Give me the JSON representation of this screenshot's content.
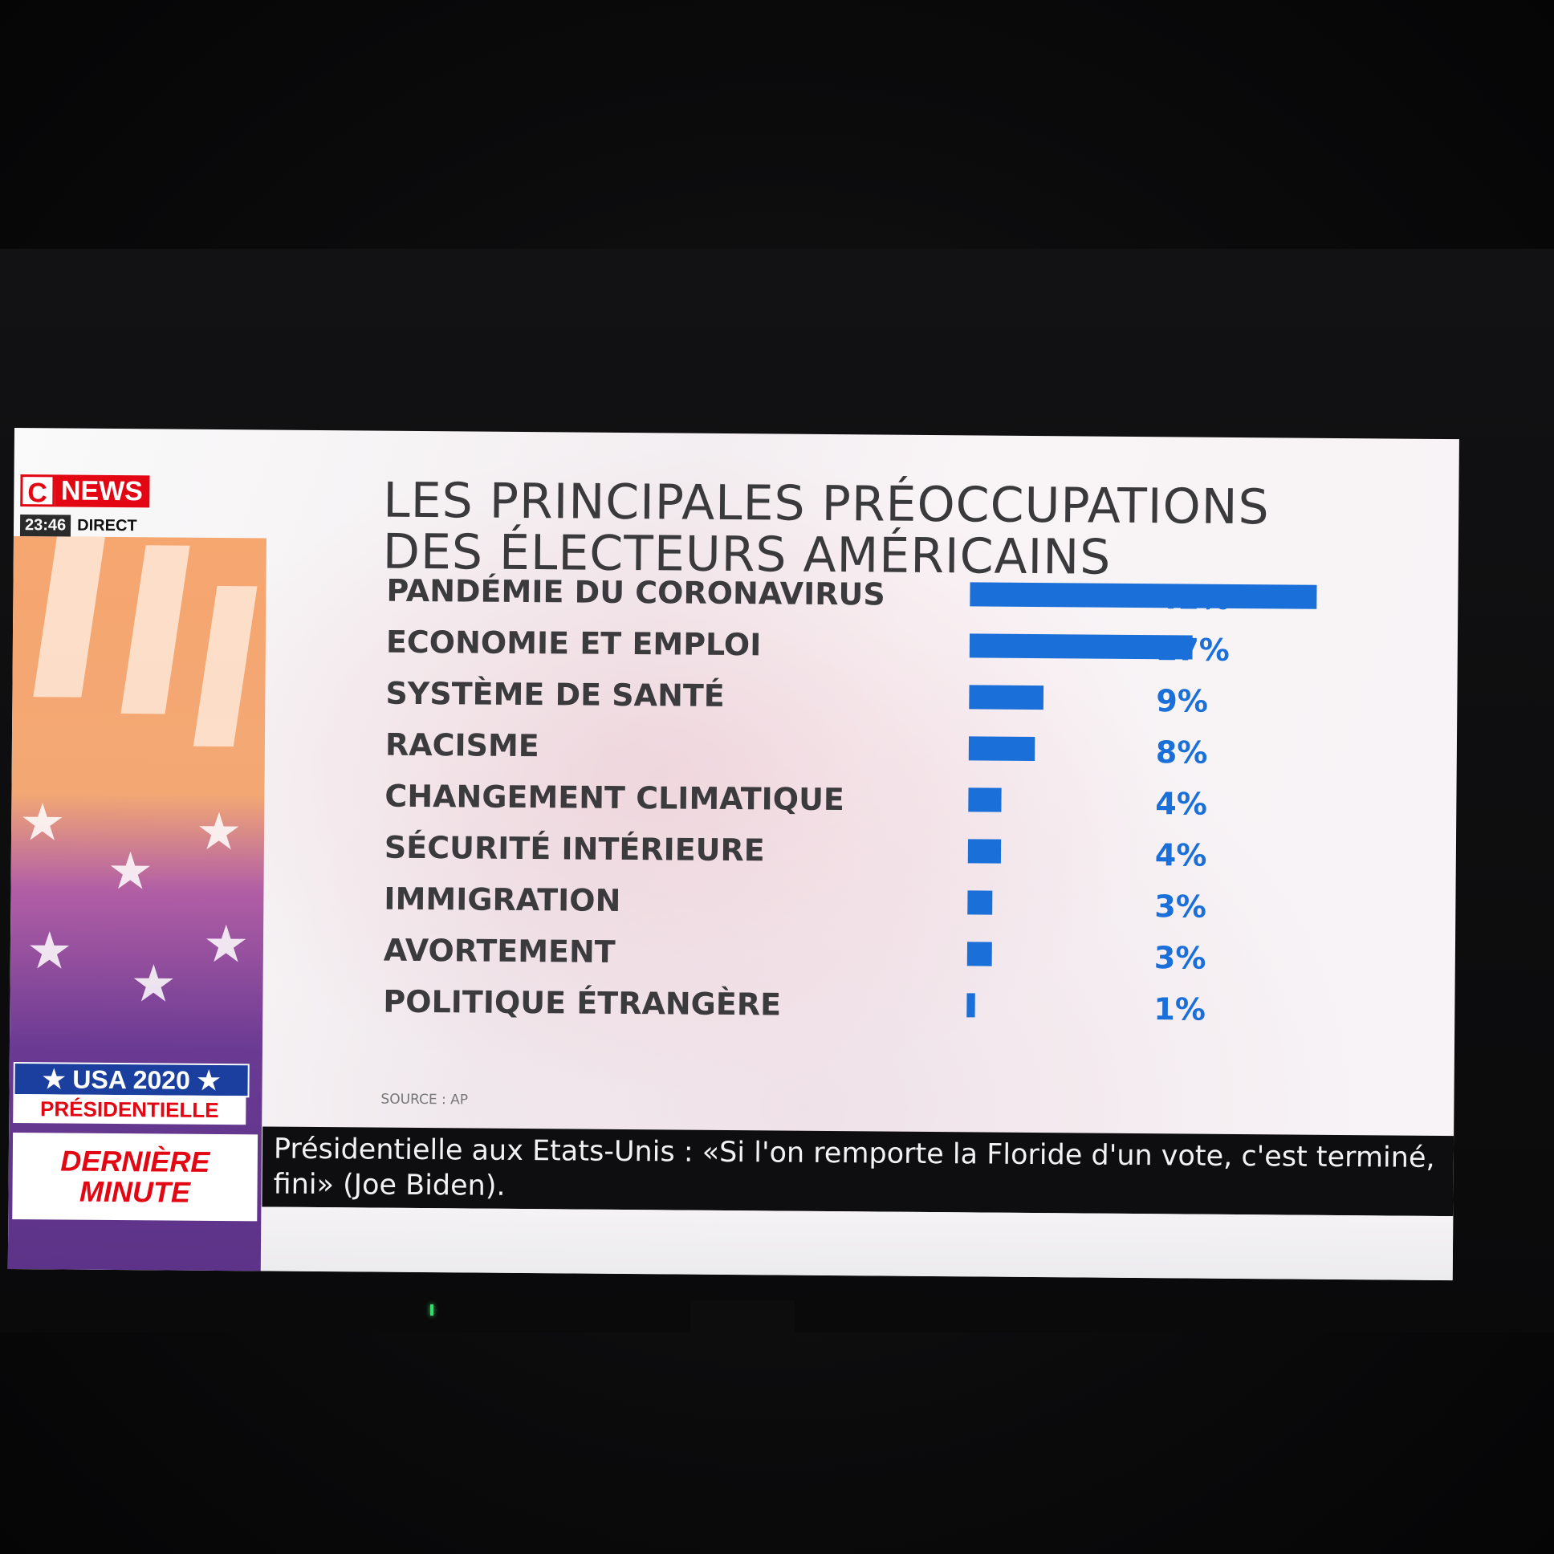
{
  "channel": {
    "logo_c": "C",
    "logo_news": "NEWS",
    "time": "23:46",
    "live": "DIRECT"
  },
  "badges": {
    "usa": "★ USA 2020 ★",
    "presidentielle": "PRÉSIDENTIELLE",
    "derniere_1": "DERNIÈRE",
    "derniere_2": "MINUTE"
  },
  "ticker": {
    "text": "Présidentielle aux Etats-Unis : «Si l'on remporte la Floride d'un vote, c'est terminé, fini» (Joe Biden)."
  },
  "chart_data": {
    "type": "bar",
    "orientation": "horizontal",
    "title_line1": "LES PRINCIPALES PRÉOCCUPATIONS",
    "title_line2": "DES ÉLECTEURS AMÉRICAINS",
    "categories": [
      "PANDÉMIE DU CORONAVIRUS",
      "ECONOMIE ET EMPLOI",
      "SYSTÈME DE SANTÉ",
      "RACISME",
      "CHANGEMENT CLIMATIQUE",
      "SÉCURITÉ INTÉRIEURE",
      "IMMIGRATION",
      "AVORTEMENT",
      "POLITIQUE ÉTRANGÈRE"
    ],
    "values": [
      42,
      27,
      9,
      8,
      4,
      4,
      3,
      3,
      1
    ],
    "value_labels": [
      "42%",
      "27%",
      "9%",
      "8%",
      "4%",
      "4%",
      "3%",
      "3%",
      "1%"
    ],
    "unit": "%",
    "xlim": [
      0,
      42
    ],
    "source": "SOURCE : AP",
    "grid": false,
    "legend": "none",
    "bar_color": "#1a6fd8"
  }
}
